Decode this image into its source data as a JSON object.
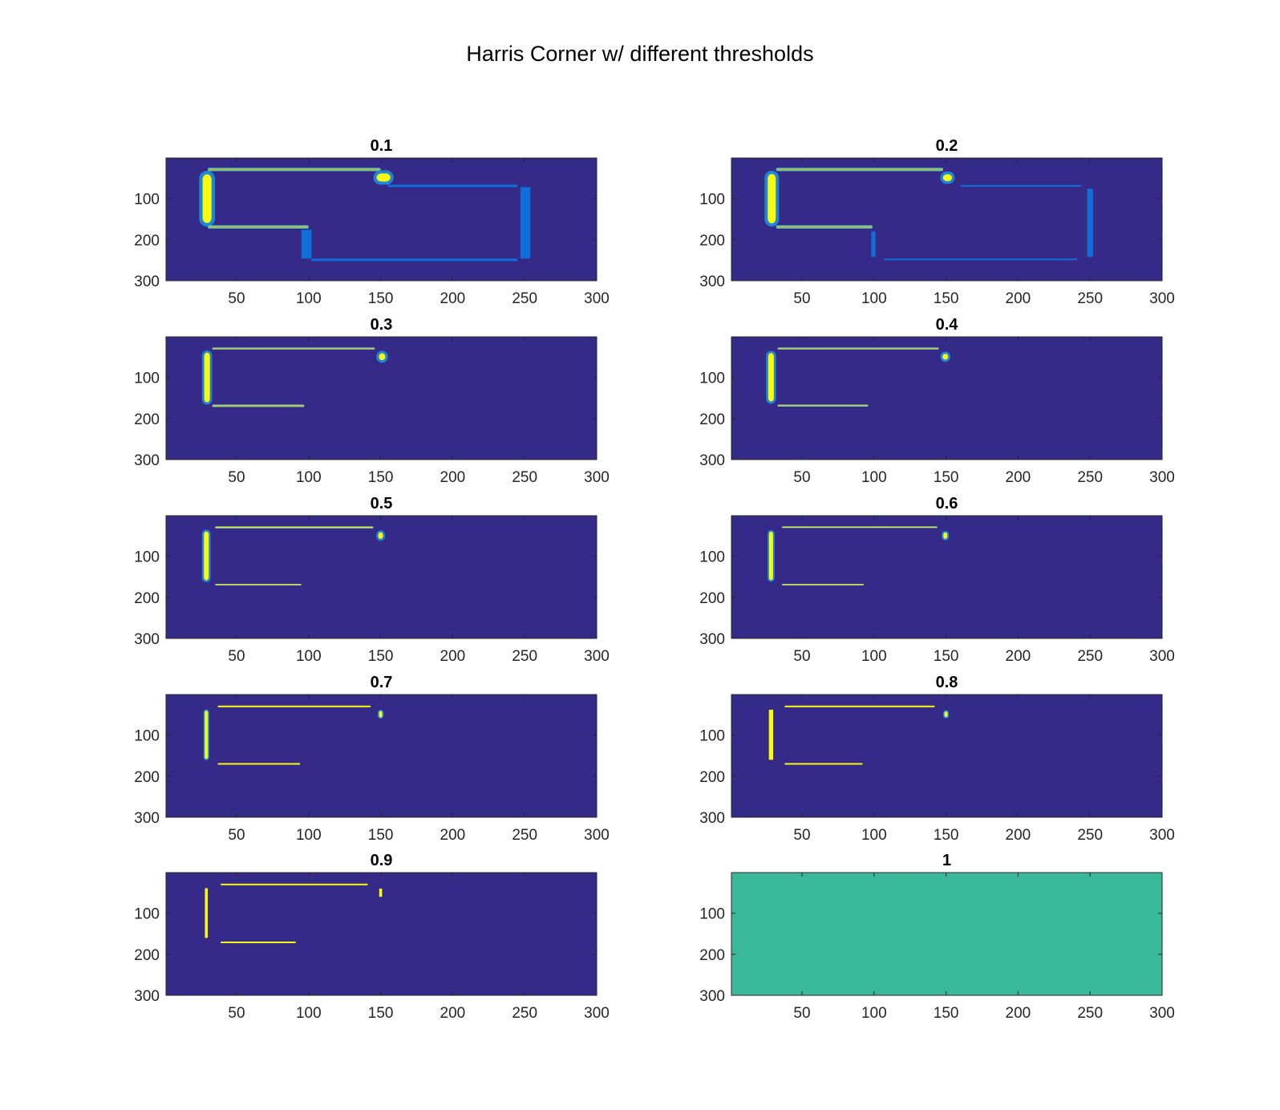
{
  "figure": {
    "title": "Harris Corner w/ different thresholds"
  },
  "colors": {
    "background": "#352a87",
    "yellow": "#f9fb0e",
    "bright_blue": "#0f6ed8",
    "teal": "#3ab89a",
    "cyan_edge": "#5bc3c9",
    "blue_edge": "#1f85d4"
  },
  "chart_data": [
    {
      "type": "heatmap",
      "title": "0.1",
      "xlim": [
        1,
        300
      ],
      "ylim": [
        1,
        300
      ],
      "y_reversed": true,
      "xticks": [
        50,
        100,
        150,
        200,
        250,
        300
      ],
      "yticks": [
        100,
        200,
        300
      ],
      "background_value": 0,
      "features": [
        {
          "x": [
            24,
            35
          ],
          "y": [
            32,
            168
          ],
          "intensity": 1.0
        },
        {
          "x": [
            30,
            150
          ],
          "y": [
            25,
            33
          ],
          "intensity": 0.75
        },
        {
          "x": [
            145,
            159
          ],
          "y": [
            31,
            66
          ],
          "intensity": 1.0
        },
        {
          "x": [
            30,
            100
          ],
          "y": [
            165,
            173
          ],
          "intensity": 0.75
        },
        {
          "x": [
            155,
            245
          ],
          "y": [
            66,
            72
          ],
          "intensity": 0.25
        },
        {
          "x": [
            247,
            254
          ],
          "y": [
            72,
            246
          ],
          "intensity": 0.25
        },
        {
          "x": [
            95,
            102
          ],
          "y": [
            176,
            246
          ],
          "intensity": 0.25
        },
        {
          "x": [
            102,
            245
          ],
          "y": [
            246,
            252
          ],
          "intensity": 0.25
        }
      ]
    },
    {
      "type": "heatmap",
      "title": "0.2",
      "xlim": [
        1,
        300
      ],
      "ylim": [
        1,
        300
      ],
      "y_reversed": true,
      "xticks": [
        50,
        100,
        150,
        200,
        250,
        300
      ],
      "yticks": [
        100,
        200,
        300
      ],
      "background_value": 0,
      "features": [
        {
          "x": [
            24,
            34
          ],
          "y": [
            32,
            168
          ],
          "intensity": 1.0
        },
        {
          "x": [
            32,
            148
          ],
          "y": [
            25,
            33
          ],
          "intensity": 0.75
        },
        {
          "x": [
            146,
            156
          ],
          "y": [
            34,
            64
          ],
          "intensity": 1.0
        },
        {
          "x": [
            32,
            99
          ],
          "y": [
            165,
            173
          ],
          "intensity": 0.75
        },
        {
          "x": [
            160,
            244
          ],
          "y": [
            67,
            71
          ],
          "intensity": 0.25
        },
        {
          "x": [
            248,
            252
          ],
          "y": [
            76,
            242
          ],
          "intensity": 0.25
        },
        {
          "x": [
            98,
            101
          ],
          "y": [
            180,
            242
          ],
          "intensity": 0.25
        },
        {
          "x": [
            107,
            241
          ],
          "y": [
            246,
            250
          ],
          "intensity": 0.25
        }
      ]
    },
    {
      "type": "heatmap",
      "title": "0.3",
      "xlim": [
        1,
        300
      ],
      "ylim": [
        1,
        300
      ],
      "y_reversed": true,
      "xticks": [
        50,
        100,
        150,
        200,
        250,
        300
      ],
      "yticks": [
        100,
        200,
        300
      ],
      "background_value": 0,
      "features": [
        {
          "x": [
            26,
            33
          ],
          "y": [
            34,
            166
          ],
          "intensity": 1.0
        },
        {
          "x": [
            33,
            146
          ],
          "y": [
            27,
            32
          ],
          "intensity": 0.85
        },
        {
          "x": [
            147,
            155
          ],
          "y": [
            35,
            64
          ],
          "intensity": 1.0
        },
        {
          "x": [
            33,
            97
          ],
          "y": [
            166,
            172
          ],
          "intensity": 0.85
        }
      ]
    },
    {
      "type": "heatmap",
      "title": "0.4",
      "xlim": [
        1,
        300
      ],
      "ylim": [
        1,
        300
      ],
      "y_reversed": true,
      "xticks": [
        50,
        100,
        150,
        200,
        250,
        300
      ],
      "yticks": [
        100,
        200,
        300
      ],
      "background_value": 0,
      "features": [
        {
          "x": [
            25,
            32
          ],
          "y": [
            35,
            164
          ],
          "intensity": 1.0
        },
        {
          "x": [
            33,
            145
          ],
          "y": [
            27,
            32
          ],
          "intensity": 0.85
        },
        {
          "x": [
            146,
            153
          ],
          "y": [
            37,
            62
          ],
          "intensity": 1.0
        },
        {
          "x": [
            33,
            96
          ],
          "y": [
            166,
            171
          ],
          "intensity": 0.85
        }
      ]
    },
    {
      "type": "heatmap",
      "title": "0.5",
      "xlim": [
        1,
        300
      ],
      "ylim": [
        1,
        300
      ],
      "y_reversed": true,
      "xticks": [
        50,
        100,
        150,
        200,
        250,
        300
      ],
      "yticks": [
        100,
        200,
        300
      ],
      "background_value": 0,
      "features": [
        {
          "x": [
            26,
            32
          ],
          "y": [
            35,
            163
          ],
          "intensity": 1.0
        },
        {
          "x": [
            35,
            145
          ],
          "y": [
            27,
            32
          ],
          "intensity": 0.95
        },
        {
          "x": [
            147,
            153
          ],
          "y": [
            37,
            62
          ],
          "intensity": 1.0
        },
        {
          "x": [
            35,
            95
          ],
          "y": [
            167,
            171
          ],
          "intensity": 0.95
        }
      ]
    },
    {
      "type": "heatmap",
      "title": "0.6",
      "xlim": [
        1,
        300
      ],
      "ylim": [
        1,
        300
      ],
      "y_reversed": true,
      "xticks": [
        50,
        100,
        150,
        200,
        250,
        300
      ],
      "yticks": [
        100,
        200,
        300
      ],
      "background_value": 0,
      "features": [
        {
          "x": [
            26,
            31
          ],
          "y": [
            36,
            162
          ],
          "intensity": 1.0
        },
        {
          "x": [
            36,
            144
          ],
          "y": [
            27,
            31
          ],
          "intensity": 0.95
        },
        {
          "x": [
            147,
            152
          ],
          "y": [
            38,
            61
          ],
          "intensity": 1.0
        },
        {
          "x": [
            36,
            93
          ],
          "y": [
            167,
            171
          ],
          "intensity": 0.95
        }
      ]
    },
    {
      "type": "heatmap",
      "title": "0.7",
      "xlim": [
        1,
        300
      ],
      "ylim": [
        1,
        300
      ],
      "y_reversed": true,
      "xticks": [
        50,
        100,
        150,
        200,
        250,
        300
      ],
      "yticks": [
        100,
        200,
        300
      ],
      "background_value": 0,
      "features": [
        {
          "x": [
            27,
            31
          ],
          "y": [
            37,
            161
          ],
          "intensity": 1.0
        },
        {
          "x": [
            37,
            143
          ],
          "y": [
            28,
            31
          ],
          "intensity": 1.0
        },
        {
          "x": [
            148,
            152
          ],
          "y": [
            38,
            60
          ],
          "intensity": 1.0
        },
        {
          "x": [
            37,
            94
          ],
          "y": [
            168,
            171
          ],
          "intensity": 1.0
        }
      ]
    },
    {
      "type": "heatmap",
      "title": "0.8",
      "xlim": [
        1,
        300
      ],
      "ylim": [
        1,
        300
      ],
      "y_reversed": true,
      "xticks": [
        50,
        100,
        150,
        200,
        250,
        300
      ],
      "yticks": [
        100,
        200,
        300
      ],
      "background_value": 0,
      "features": [
        {
          "x": [
            27,
            30
          ],
          "y": [
            38,
            160
          ],
          "intensity": 1.0
        },
        {
          "x": [
            38,
            142
          ],
          "y": [
            28,
            31
          ],
          "intensity": 1.0
        },
        {
          "x": [
            148,
            152
          ],
          "y": [
            39,
            59
          ],
          "intensity": 1.0
        },
        {
          "x": [
            38,
            92
          ],
          "y": [
            168,
            171
          ],
          "intensity": 1.0
        }
      ]
    },
    {
      "type": "heatmap",
      "title": "0.9",
      "xlim": [
        1,
        300
      ],
      "ylim": [
        1,
        300
      ],
      "y_reversed": true,
      "xticks": [
        50,
        100,
        150,
        200,
        250,
        300
      ],
      "yticks": [
        100,
        200,
        300
      ],
      "background_value": 0,
      "features": [
        {
          "x": [
            28,
            30
          ],
          "y": [
            39,
            160
          ],
          "intensity": 1.0
        },
        {
          "x": [
            39,
            141
          ],
          "y": [
            28,
            30
          ],
          "intensity": 1.0
        },
        {
          "x": [
            149,
            151
          ],
          "y": [
            40,
            60
          ],
          "intensity": 1.0
        },
        {
          "x": [
            39,
            91
          ],
          "y": [
            169,
            171
          ],
          "intensity": 1.0
        }
      ]
    },
    {
      "type": "heatmap",
      "title": "1",
      "xlim": [
        1,
        300
      ],
      "ylim": [
        1,
        300
      ],
      "y_reversed": true,
      "xticks": [
        50,
        100,
        150,
        200,
        250,
        300
      ],
      "yticks": [
        100,
        200,
        300
      ],
      "background_value": 0.6,
      "features": []
    }
  ]
}
